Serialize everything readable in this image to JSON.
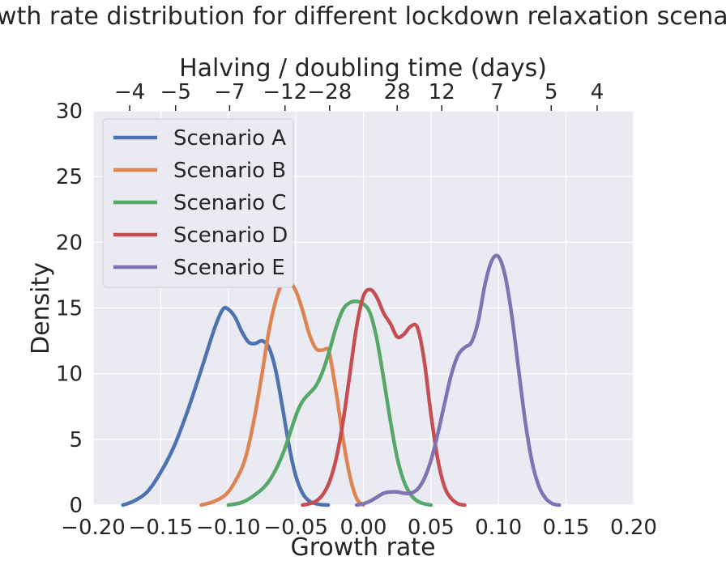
{
  "chart_data": {
    "type": "line",
    "title": "Growth rate distribution for different lockdown relaxation scenarios",
    "xlabel": "Growth rate",
    "ylabel": "Density",
    "x2label": "Halving / doubling time (days)",
    "xlim": [
      -0.2,
      0.2
    ],
    "ylim": [
      0,
      30
    ],
    "xticks": [
      -0.2,
      -0.15,
      -0.1,
      -0.05,
      0.0,
      0.05,
      0.1,
      0.15,
      0.2
    ],
    "xtick_labels": [
      "−0.20",
      "−0.15",
      "−0.10",
      "−0.05",
      "0.00",
      "0.05",
      "0.10",
      "0.15",
      "0.20"
    ],
    "yticks": [
      0,
      5,
      10,
      15,
      20,
      25,
      30
    ],
    "ytick_labels": [
      "0",
      "5",
      "10",
      "15",
      "20",
      "25",
      "30"
    ],
    "top_ticks": [
      {
        "label": "−4",
        "x": -0.173
      },
      {
        "label": "−5",
        "x": -0.139
      },
      {
        "label": "−7",
        "x": -0.099
      },
      {
        "label": "−12",
        "x": -0.058
      },
      {
        "label": "−28",
        "x": -0.025
      },
      {
        "label": "28",
        "x": 0.025
      },
      {
        "label": "12",
        "x": 0.058
      },
      {
        "label": "7",
        "x": 0.099
      },
      {
        "label": "5",
        "x": 0.139
      },
      {
        "label": "4",
        "x": 0.173
      }
    ],
    "grid": true,
    "legend_position": "top-left",
    "background": "#eaeaf2",
    "series": [
      {
        "name": "Scenario A",
        "color": "#4c72b0",
        "x": [
          -0.178,
          -0.17,
          -0.16,
          -0.15,
          -0.14,
          -0.13,
          -0.12,
          -0.11,
          -0.104,
          -0.1,
          -0.095,
          -0.09,
          -0.085,
          -0.08,
          -0.075,
          -0.07,
          -0.065,
          -0.06,
          -0.055,
          -0.05,
          -0.045,
          -0.04,
          -0.035,
          -0.03,
          -0.026
        ],
        "y": [
          0,
          0.3,
          1.0,
          2.5,
          4.5,
          7.2,
          10.3,
          13.5,
          14.9,
          14.9,
          14.3,
          13.2,
          12.4,
          12.3,
          12.5,
          12.0,
          10.3,
          7.5,
          4.5,
          2.2,
          0.9,
          0.3,
          0.1,
          0.02,
          0
        ]
      },
      {
        "name": "Scenario B",
        "color": "#dd8452",
        "x": [
          -0.12,
          -0.11,
          -0.1,
          -0.09,
          -0.085,
          -0.08,
          -0.075,
          -0.07,
          -0.065,
          -0.06,
          -0.055,
          -0.05,
          -0.045,
          -0.04,
          -0.035,
          -0.03,
          -0.027,
          -0.025,
          -0.02,
          -0.015,
          -0.01,
          -0.005,
          0.0
        ],
        "y": [
          0,
          0.3,
          1.0,
          2.8,
          4.5,
          7.0,
          10.0,
          13.2,
          15.5,
          16.9,
          17.0,
          16.3,
          14.8,
          13.0,
          11.9,
          11.8,
          11.9,
          11.5,
          8.5,
          5.0,
          2.2,
          0.5,
          0
        ]
      },
      {
        "name": "Scenario C",
        "color": "#55a868",
        "x": [
          -0.1,
          -0.09,
          -0.08,
          -0.07,
          -0.06,
          -0.05,
          -0.045,
          -0.04,
          -0.035,
          -0.03,
          -0.025,
          -0.02,
          -0.015,
          -0.01,
          -0.005,
          0.0,
          0.005,
          0.01,
          0.015,
          0.02,
          0.025,
          0.03,
          0.035,
          0.04,
          0.045,
          0.05
        ],
        "y": [
          0,
          0.2,
          0.8,
          1.8,
          3.8,
          6.8,
          7.9,
          8.5,
          9.1,
          10.2,
          11.8,
          13.6,
          14.9,
          15.4,
          15.5,
          15.3,
          14.6,
          12.6,
          9.6,
          6.4,
          3.6,
          1.8,
          0.8,
          0.3,
          0.1,
          0
        ]
      },
      {
        "name": "Scenario D",
        "color": "#c44e52",
        "x": [
          -0.045,
          -0.04,
          -0.035,
          -0.03,
          -0.025,
          -0.02,
          -0.015,
          -0.01,
          -0.005,
          0.0,
          0.005,
          0.01,
          0.015,
          0.02,
          0.025,
          0.03,
          0.035,
          0.04,
          0.045,
          0.05,
          0.055,
          0.06,
          0.065,
          0.07,
          0.075
        ],
        "y": [
          0,
          0.1,
          0.3,
          0.8,
          1.8,
          3.6,
          6.4,
          10.0,
          13.6,
          15.9,
          16.4,
          15.8,
          14.6,
          13.8,
          12.8,
          13.0,
          13.6,
          13.5,
          11.0,
          6.9,
          3.5,
          1.4,
          0.5,
          0.1,
          0
        ]
      },
      {
        "name": "Scenario E",
        "color": "#8172b3",
        "x": [
          -0.005,
          0.0,
          0.005,
          0.01,
          0.015,
          0.02,
          0.025,
          0.03,
          0.035,
          0.04,
          0.045,
          0.05,
          0.055,
          0.06,
          0.065,
          0.07,
          0.075,
          0.08,
          0.085,
          0.09,
          0.095,
          0.1,
          0.105,
          0.11,
          0.115,
          0.12,
          0.125,
          0.13,
          0.135,
          0.14,
          0.145
        ],
        "y": [
          0,
          0.1,
          0.3,
          0.6,
          0.9,
          1.0,
          1.0,
          0.9,
          0.9,
          1.2,
          2.0,
          3.4,
          5.4,
          7.7,
          9.9,
          11.4,
          12.0,
          12.4,
          14.0,
          16.8,
          18.6,
          18.9,
          17.4,
          14.3,
          10.2,
          6.2,
          3.2,
          1.4,
          0.5,
          0.1,
          0
        ]
      }
    ]
  }
}
